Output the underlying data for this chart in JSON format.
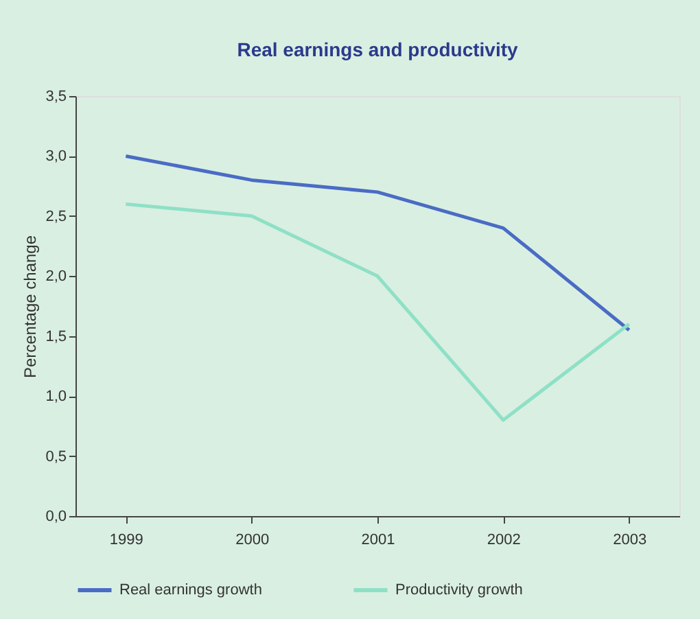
{
  "chart_data": {
    "type": "line",
    "title": "Real earnings and productivity",
    "ylabel": "Percentage change",
    "categories": [
      "1999",
      "2000",
      "2001",
      "2002",
      "2003"
    ],
    "series": [
      {
        "name": "Real earnings growth",
        "color": "#4a6cc4",
        "values": [
          3.0,
          2.8,
          2.7,
          2.4,
          1.55
        ]
      },
      {
        "name": "Productivity growth",
        "color": "#8ee0c6",
        "values": [
          2.6,
          2.5,
          2.0,
          0.8,
          1.6
        ]
      }
    ],
    "ylim": [
      0,
      3.5
    ],
    "yticks": [
      {
        "value": 0,
        "label": "0,0"
      },
      {
        "value": 0.5,
        "label": "0,5"
      },
      {
        "value": 1,
        "label": "1,0"
      },
      {
        "value": 1.5,
        "label": "1,5"
      },
      {
        "value": 2,
        "label": "2,0"
      },
      {
        "value": 2.5,
        "label": "2,5"
      },
      {
        "value": 3,
        "label": "3,0"
      },
      {
        "value": 3.5,
        "label": "3,5"
      }
    ],
    "grid": false,
    "legend": "bottom",
    "marker": "none",
    "line_style": "solid"
  }
}
